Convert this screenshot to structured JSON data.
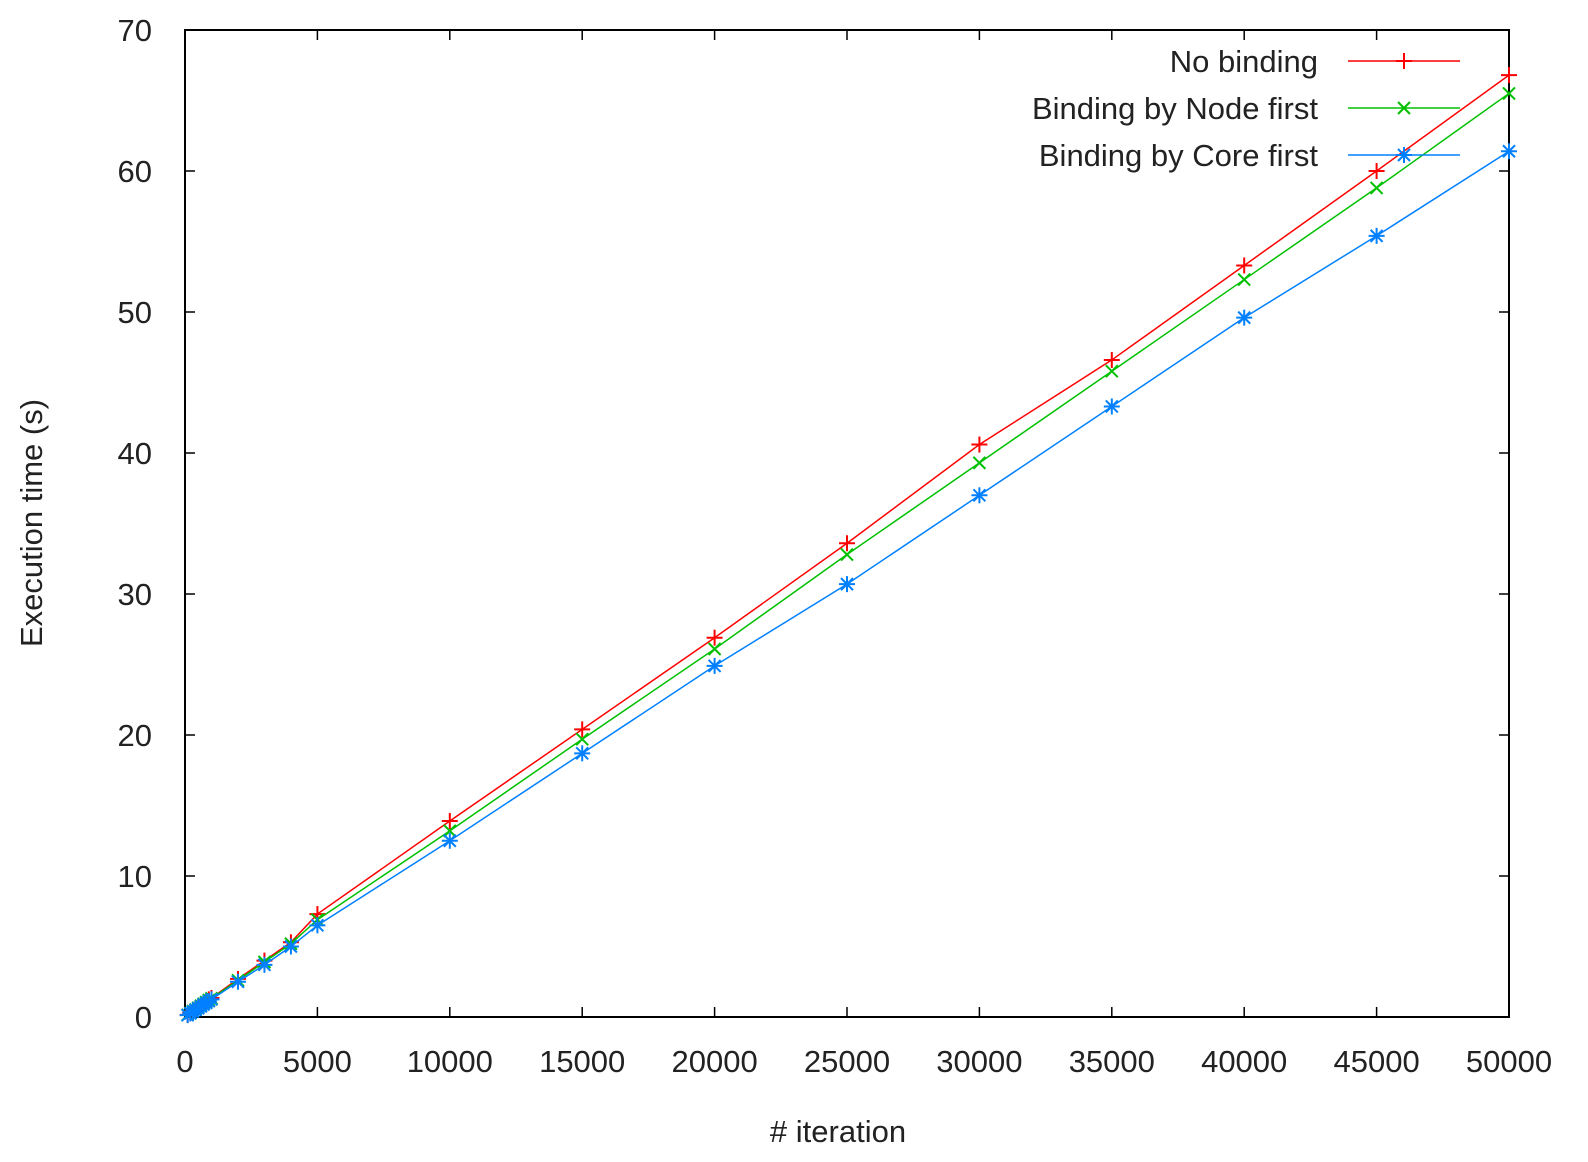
{
  "chart_data": {
    "type": "line",
    "title": "",
    "xlabel": "# iteration",
    "ylabel": "Execution time (s)",
    "xlim": [
      0,
      50000
    ],
    "ylim": [
      0,
      70
    ],
    "xticks": [
      0,
      5000,
      10000,
      15000,
      20000,
      25000,
      30000,
      35000,
      40000,
      45000,
      50000
    ],
    "yticks": [
      0,
      10,
      20,
      30,
      40,
      50,
      60,
      70
    ],
    "grid": false,
    "legend_position": "top-right",
    "series": [
      {
        "name": "No binding",
        "color": "#ff0000",
        "marker": "plus",
        "x": [
          100,
          200,
          300,
          400,
          500,
          600,
          700,
          800,
          900,
          1000,
          2000,
          3000,
          4000,
          5000,
          10000,
          15000,
          20000,
          25000,
          30000,
          35000,
          40000,
          45000,
          50000
        ],
        "y": [
          0.15,
          0.3,
          0.45,
          0.55,
          0.7,
          0.85,
          0.95,
          1.1,
          1.25,
          1.35,
          2.7,
          4.0,
          5.3,
          7.3,
          13.9,
          20.4,
          26.9,
          33.6,
          40.6,
          46.6,
          53.3,
          60.0,
          66.8
        ]
      },
      {
        "name": "Binding by Node first",
        "color": "#00c000",
        "marker": "cross",
        "x": [
          100,
          200,
          300,
          400,
          500,
          600,
          700,
          800,
          900,
          1000,
          2000,
          3000,
          4000,
          5000,
          10000,
          15000,
          20000,
          25000,
          30000,
          35000,
          40000,
          45000,
          50000
        ],
        "y": [
          0.15,
          0.28,
          0.42,
          0.53,
          0.66,
          0.8,
          0.93,
          1.06,
          1.2,
          1.32,
          2.6,
          3.9,
          5.2,
          6.9,
          13.2,
          19.7,
          26.1,
          32.8,
          39.3,
          45.8,
          52.3,
          58.8,
          65.5
        ]
      },
      {
        "name": "Binding by Core first",
        "color": "#0080ff",
        "marker": "star",
        "x": [
          100,
          200,
          300,
          400,
          500,
          600,
          700,
          800,
          900,
          1000,
          2000,
          3000,
          4000,
          5000,
          10000,
          15000,
          20000,
          25000,
          30000,
          35000,
          40000,
          45000,
          50000
        ],
        "y": [
          0.13,
          0.25,
          0.38,
          0.5,
          0.62,
          0.75,
          0.88,
          1.0,
          1.12,
          1.25,
          2.5,
          3.7,
          5.0,
          6.5,
          12.5,
          18.7,
          24.9,
          30.7,
          37.0,
          43.3,
          49.6,
          55.4,
          61.4
        ]
      }
    ]
  }
}
